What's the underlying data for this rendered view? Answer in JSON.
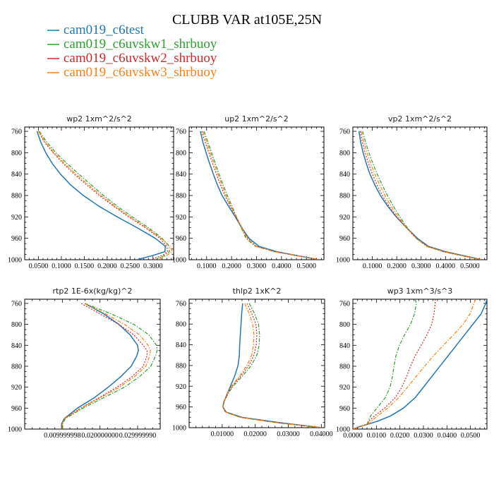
{
  "figure": {
    "title": "CLUBB VAR at105E,25N",
    "legend": [
      {
        "label": "cam019_c6test",
        "color": "#1f77b4",
        "dash": "solid"
      },
      {
        "label": "cam019_c6uvskw1_shrbuoy",
        "color": "#2ca02c",
        "dash": "dashdot"
      },
      {
        "label": "cam019_c6uvskw2_shrbuoy",
        "color": "#d62728",
        "dash": "dotted"
      },
      {
        "label": "cam019_c6uvskw3_shrbuoy",
        "color": "#ff7f0e",
        "dash": "dashdot"
      }
    ]
  },
  "chart_data": [
    {
      "type": "line",
      "title": "wp2  1xm^2/s^2",
      "xlim": [
        0.02,
        0.345
      ],
      "ylim": [
        1000,
        752
      ],
      "yticks": [
        760,
        800,
        840,
        880,
        920,
        960,
        1000
      ],
      "xticks": [
        0.05,
        0.1,
        0.15,
        0.2,
        0.25,
        0.3
      ],
      "xtick_labels": [
        "0.0500",
        "0.1000",
        "0.1500",
        "0.2000",
        "0.2500",
        "0.3000"
      ],
      "y": [
        760,
        780,
        800,
        820,
        840,
        860,
        880,
        900,
        920,
        940,
        960,
        975,
        985,
        992,
        1000
      ],
      "series": [
        {
          "values": [
            0.047,
            0.055,
            0.066,
            0.08,
            0.098,
            0.12,
            0.148,
            0.182,
            0.222,
            0.265,
            0.305,
            0.327,
            0.326,
            0.3,
            0.265
          ]
        },
        {
          "values": [
            0.052,
            0.068,
            0.088,
            0.112,
            0.138,
            0.165,
            0.192,
            0.222,
            0.255,
            0.29,
            0.32,
            0.335,
            0.336,
            0.325,
            0.305
          ]
        },
        {
          "values": [
            0.05,
            0.063,
            0.082,
            0.104,
            0.128,
            0.155,
            0.183,
            0.214,
            0.247,
            0.283,
            0.315,
            0.33,
            0.332,
            0.32,
            0.295
          ]
        },
        {
          "values": [
            0.05,
            0.065,
            0.084,
            0.107,
            0.132,
            0.159,
            0.187,
            0.217,
            0.25,
            0.286,
            0.318,
            0.338,
            0.342,
            0.33,
            0.31
          ]
        }
      ]
    },
    {
      "type": "line",
      "title": "up2  1xm^2/s^2",
      "xlim": [
        0.03,
        0.57
      ],
      "ylim": [
        1000,
        752
      ],
      "yticks": [
        760,
        800,
        840,
        880,
        920,
        960,
        1000
      ],
      "xticks": [
        0.1,
        0.2,
        0.3,
        0.4,
        0.5
      ],
      "xtick_labels": [
        "0.1000",
        "0.2000",
        "0.3000",
        "0.4000",
        "0.5000"
      ],
      "y": [
        760,
        780,
        800,
        820,
        840,
        860,
        880,
        900,
        920,
        940,
        960,
        975,
        985,
        992,
        1000
      ],
      "series": [
        {
          "values": [
            0.075,
            0.085,
            0.098,
            0.112,
            0.127,
            0.143,
            0.162,
            0.188,
            0.215,
            0.24,
            0.27,
            0.31,
            0.38,
            0.46,
            0.55
          ]
        },
        {
          "values": [
            0.09,
            0.105,
            0.12,
            0.135,
            0.15,
            0.166,
            0.183,
            0.202,
            0.22,
            0.238,
            0.258,
            0.295,
            0.37,
            0.455,
            0.55
          ]
        },
        {
          "values": [
            0.08,
            0.094,
            0.109,
            0.124,
            0.139,
            0.155,
            0.173,
            0.195,
            0.218,
            0.242,
            0.265,
            0.3,
            0.372,
            0.455,
            0.55
          ]
        },
        {
          "values": [
            0.085,
            0.1,
            0.115,
            0.13,
            0.145,
            0.161,
            0.178,
            0.198,
            0.219,
            0.24,
            0.262,
            0.298,
            0.371,
            0.455,
            0.55
          ]
        }
      ]
    },
    {
      "type": "line",
      "title": "vp2  1xm^2/s^2",
      "xlim": [
        0.02,
        0.57
      ],
      "ylim": [
        1000,
        752
      ],
      "yticks": [
        760,
        800,
        840,
        880,
        920,
        960,
        1000
      ],
      "xticks": [
        0.1,
        0.2,
        0.3,
        0.4,
        0.5
      ],
      "xtick_labels": [
        "0.1000",
        "0.2000",
        "0.3000",
        "0.4000",
        "0.5000"
      ],
      "y": [
        760,
        780,
        800,
        820,
        840,
        860,
        880,
        900,
        920,
        940,
        960,
        975,
        985,
        992,
        1000
      ],
      "series": [
        {
          "values": [
            0.045,
            0.052,
            0.062,
            0.075,
            0.09,
            0.11,
            0.133,
            0.163,
            0.198,
            0.24,
            0.285,
            0.33,
            0.4,
            0.47,
            0.55
          ]
        },
        {
          "values": [
            0.06,
            0.072,
            0.086,
            0.102,
            0.12,
            0.14,
            0.162,
            0.186,
            0.213,
            0.243,
            0.28,
            0.322,
            0.39,
            0.46,
            0.55
          ]
        },
        {
          "values": [
            0.05,
            0.059,
            0.07,
            0.084,
            0.1,
            0.119,
            0.141,
            0.168,
            0.2,
            0.238,
            0.28,
            0.325,
            0.395,
            0.465,
            0.55
          ]
        },
        {
          "values": [
            0.055,
            0.065,
            0.078,
            0.093,
            0.11,
            0.13,
            0.152,
            0.177,
            0.206,
            0.24,
            0.28,
            0.324,
            0.393,
            0.463,
            0.55
          ]
        }
      ]
    },
    {
      "type": "line",
      "title": "rtp2  1E-6x(kg/kg)^2",
      "xlim": [
        0.0,
        0.036
      ],
      "ylim": [
        1000,
        752
      ],
      "yticks": [
        760,
        800,
        840,
        880,
        920,
        960,
        1000
      ],
      "xticks": [
        0.01,
        0.02,
        0.03
      ],
      "xtick_labels": [
        "0.009999998",
        "0.020000000",
        "0.029999990"
      ],
      "y": [
        760,
        780,
        800,
        820,
        840,
        850,
        860,
        880,
        900,
        920,
        940,
        960,
        980,
        990,
        1000
      ],
      "series": [
        {
          "values": [
            0.016,
            0.021,
            0.025,
            0.028,
            0.03,
            0.0302,
            0.0298,
            0.0283,
            0.0255,
            0.0222,
            0.0185,
            0.014,
            0.0105,
            0.0098,
            0.0098
          ]
        },
        {
          "values": [
            0.016,
            0.023,
            0.029,
            0.033,
            0.035,
            0.0352,
            0.0348,
            0.0335,
            0.0305,
            0.0265,
            0.021,
            0.0155,
            0.0108,
            0.0101,
            0.0101
          ]
        },
        {
          "values": [
            0.015,
            0.02,
            0.025,
            0.029,
            0.0315,
            0.0325,
            0.0325,
            0.0315,
            0.0285,
            0.0245,
            0.0198,
            0.0148,
            0.0105,
            0.0099,
            0.0099
          ]
        },
        {
          "values": [
            0.016,
            0.0215,
            0.0265,
            0.0305,
            0.0328,
            0.0334,
            0.0332,
            0.0322,
            0.0292,
            0.0252,
            0.0202,
            0.015,
            0.0106,
            0.01,
            0.01
          ]
        }
      ]
    },
    {
      "type": "line",
      "title": "thlp2  1xK^2",
      "xlim": [
        0.0,
        0.041
      ],
      "ylim": [
        1000,
        752
      ],
      "yticks": [
        760,
        800,
        840,
        880,
        920,
        960,
        1000
      ],
      "xticks": [
        0.01,
        0.02,
        0.03,
        0.04
      ],
      "xtick_labels": [
        "0.01000",
        "0.02000",
        "0.03000",
        "0.04000"
      ],
      "y": [
        760,
        780,
        800,
        820,
        840,
        860,
        880,
        900,
        920,
        935,
        950,
        960,
        970,
        980,
        990,
        1000
      ],
      "series": [
        {
          "values": [
            0.0162,
            0.0159,
            0.0157,
            0.0155,
            0.0153,
            0.0152,
            0.0148,
            0.0138,
            0.0125,
            0.0115,
            0.0105,
            0.0102,
            0.0112,
            0.016,
            0.027,
            0.04
          ]
        },
        {
          "values": [
            0.0182,
            0.0198,
            0.021,
            0.0213,
            0.0212,
            0.0205,
            0.0188,
            0.0162,
            0.0133,
            0.0117,
            0.0106,
            0.0102,
            0.011,
            0.0155,
            0.026,
            0.04
          ]
        },
        {
          "values": [
            0.0175,
            0.019,
            0.0202,
            0.0205,
            0.0203,
            0.0196,
            0.0181,
            0.0157,
            0.013,
            0.0116,
            0.0106,
            0.0102,
            0.011,
            0.0155,
            0.026,
            0.04
          ]
        },
        {
          "values": [
            0.0168,
            0.0182,
            0.0192,
            0.0196,
            0.0195,
            0.0189,
            0.0175,
            0.0153,
            0.0128,
            0.0115,
            0.0105,
            0.0102,
            0.011,
            0.0155,
            0.026,
            0.04
          ]
        }
      ]
    },
    {
      "type": "line",
      "title": "wp3  1xm^3/s^3",
      "xlim": [
        0.0,
        0.057
      ],
      "ylim": [
        1000,
        752
      ],
      "yticks": [
        760,
        800,
        840,
        880,
        920,
        960,
        1000
      ],
      "xticks": [
        0.0,
        0.01,
        0.02,
        0.03,
        0.04,
        0.05
      ],
      "xtick_labels": [
        "0.0000",
        "0.0100",
        "0.0200",
        "0.0300",
        "0.0400",
        "0.0500"
      ],
      "y": [
        752,
        760,
        780,
        800,
        820,
        840,
        860,
        880,
        900,
        920,
        940,
        960,
        975,
        985,
        990,
        995,
        1000
      ],
      "series": [
        {
          "values": [
            0.057,
            0.0565,
            0.0545,
            0.051,
            0.0475,
            0.044,
            0.0405,
            0.037,
            0.0335,
            0.03,
            0.0265,
            0.0215,
            0.016,
            0.0105,
            0.007,
            0.003,
            0.0
          ]
        },
        {
          "values": [
            0.0265,
            0.027,
            0.0262,
            0.0245,
            0.022,
            0.0198,
            0.0183,
            0.0175,
            0.0168,
            0.0158,
            0.0138,
            0.0102,
            0.0075,
            0.0065,
            0.0062,
            0.0035,
            0.0
          ]
        },
        {
          "values": [
            0.035,
            0.035,
            0.0345,
            0.0335,
            0.0315,
            0.029,
            0.0265,
            0.0245,
            0.0228,
            0.0208,
            0.018,
            0.0135,
            0.0092,
            0.0068,
            0.0065,
            0.0035,
            0.0
          ]
        },
        {
          "values": [
            0.052,
            0.0515,
            0.0498,
            0.0468,
            0.0428,
            0.0385,
            0.0343,
            0.0305,
            0.0268,
            0.0232,
            0.0195,
            0.0148,
            0.0105,
            0.0078,
            0.0068,
            0.0035,
            0.0
          ]
        }
      ]
    }
  ]
}
